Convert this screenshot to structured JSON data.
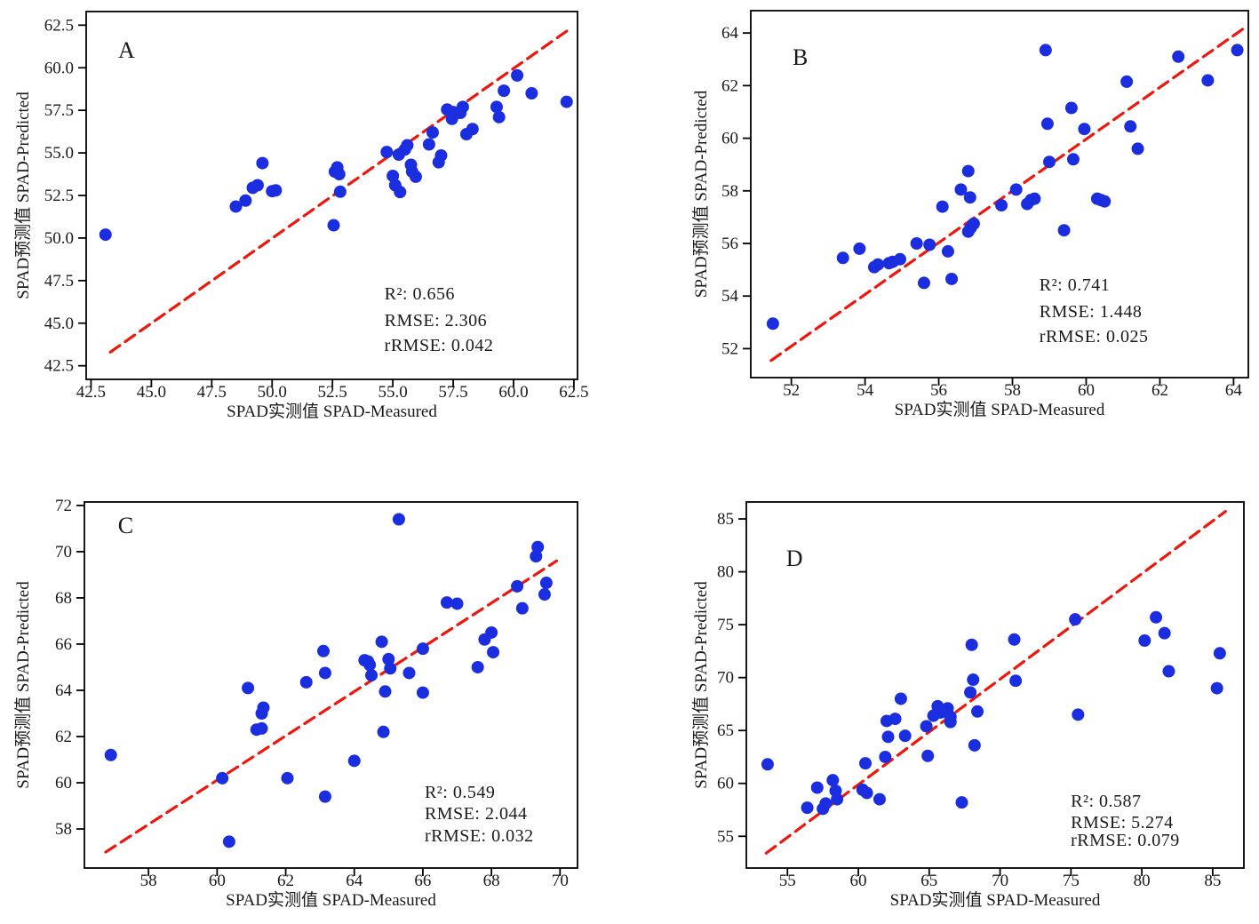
{
  "figure": {
    "background": "#ffffff",
    "colors": {
      "point": "#1a2ee0",
      "identity_line": "#ed170d",
      "axis": "#000000",
      "text": "#1a1a1a"
    }
  },
  "chart_data": [
    {
      "type": "scatter",
      "panel_label": "A",
      "xlabel": "SPAD实测值 SPAD-Measured",
      "ylabel": "SPAD预测值 SPAD-Predicted",
      "xlim": [
        42.3,
        62.65
      ],
      "ylim": [
        41.7,
        63.3
      ],
      "xtick_vals": [
        42.5,
        45.0,
        47.5,
        50.0,
        52.5,
        55.0,
        57.5,
        60.0,
        62.5
      ],
      "xtick_labels": [
        "42.5",
        "45.0",
        "47.5",
        "50.0",
        "52.5",
        "55.0",
        "57.5",
        "60.0",
        "62.5"
      ],
      "ytick_vals": [
        42.5,
        45.0,
        47.5,
        50.0,
        52.5,
        55.0,
        57.5,
        60.0,
        62.5
      ],
      "ytick_labels": [
        "42.5",
        "45.0",
        "47.5",
        "50.0",
        "52.5",
        "55.0",
        "57.5",
        "60.0",
        "62.5"
      ],
      "identity_line": [
        [
          43.3,
          43.3
        ],
        [
          62.35,
          62.3
        ]
      ],
      "stats": [
        {
          "label": "R²",
          "value": "0.656"
        },
        {
          "label": "RMSE",
          "value": "2.306"
        },
        {
          "label": "rRMSE",
          "value": "0.042"
        }
      ],
      "points": [
        [
          43.1,
          50.2
        ],
        [
          48.5,
          51.85
        ],
        [
          48.9,
          52.2
        ],
        [
          49.2,
          52.95
        ],
        [
          49.4,
          53.1
        ],
        [
          49.6,
          54.4
        ],
        [
          50.0,
          52.75
        ],
        [
          50.15,
          52.8
        ],
        [
          52.55,
          50.75
        ],
        [
          52.6,
          53.9
        ],
        [
          52.7,
          54.15
        ],
        [
          52.78,
          53.75
        ],
        [
          52.82,
          52.72
        ],
        [
          54.75,
          55.05
        ],
        [
          55.0,
          53.65
        ],
        [
          55.1,
          53.1
        ],
        [
          55.25,
          54.9
        ],
        [
          55.3,
          52.7
        ],
        [
          55.5,
          55.2
        ],
        [
          55.6,
          55.45
        ],
        [
          55.75,
          54.3
        ],
        [
          55.8,
          53.9
        ],
        [
          55.95,
          53.6
        ],
        [
          56.5,
          55.5
        ],
        [
          56.65,
          56.2
        ],
        [
          56.9,
          54.45
        ],
        [
          57.0,
          54.85
        ],
        [
          57.25,
          57.55
        ],
        [
          57.45,
          57.0
        ],
        [
          57.5,
          57.4
        ],
        [
          57.8,
          57.35
        ],
        [
          57.9,
          57.7
        ],
        [
          58.05,
          56.1
        ],
        [
          58.3,
          56.4
        ],
        [
          59.3,
          57.7
        ],
        [
          59.4,
          57.1
        ],
        [
          59.6,
          58.65
        ],
        [
          60.15,
          59.55
        ],
        [
          60.75,
          58.5
        ],
        [
          62.2,
          58.0
        ]
      ]
    },
    {
      "type": "scatter",
      "panel_label": "B",
      "xlabel": "SPAD实测值 SPAD-Measured",
      "ylabel": "SPAD预测值 SPAD-Predicted",
      "xlim": [
        50.9,
        64.4
      ],
      "ylim": [
        50.9,
        64.85
      ],
      "xtick_vals": [
        52,
        54,
        56,
        58,
        60,
        62,
        64
      ],
      "xtick_labels": [
        "52",
        "54",
        "56",
        "58",
        "60",
        "62",
        "64"
      ],
      "ytick_vals": [
        52,
        54,
        56,
        58,
        60,
        62,
        64
      ],
      "ytick_labels": [
        "52",
        "54",
        "56",
        "58",
        "60",
        "62",
        "64"
      ],
      "identity_line": [
        [
          51.45,
          51.55
        ],
        [
          64.25,
          64.15
        ]
      ],
      "stats": [
        {
          "label": "R²",
          "value": "0.741"
        },
        {
          "label": "RMSE",
          "value": "1.448"
        },
        {
          "label": "rRMSE",
          "value": "0.025"
        }
      ],
      "points": [
        [
          51.5,
          52.95
        ],
        [
          53.4,
          55.45
        ],
        [
          53.85,
          55.8
        ],
        [
          54.25,
          55.1
        ],
        [
          54.35,
          55.2
        ],
        [
          54.65,
          55.25
        ],
        [
          54.75,
          55.3
        ],
        [
          54.95,
          55.4
        ],
        [
          55.4,
          56.0
        ],
        [
          55.6,
          54.5
        ],
        [
          55.75,
          55.95
        ],
        [
          56.1,
          57.4
        ],
        [
          56.25,
          55.7
        ],
        [
          56.35,
          54.65
        ],
        [
          56.6,
          58.05
        ],
        [
          56.8,
          58.75
        ],
        [
          56.85,
          57.75
        ],
        [
          56.8,
          56.45
        ],
        [
          56.87,
          56.6
        ],
        [
          56.95,
          56.75
        ],
        [
          57.7,
          57.45
        ],
        [
          58.1,
          58.05
        ],
        [
          58.4,
          57.5
        ],
        [
          58.5,
          57.65
        ],
        [
          58.6,
          57.7
        ],
        [
          58.9,
          63.35
        ],
        [
          58.95,
          60.55
        ],
        [
          59.0,
          59.1
        ],
        [
          59.4,
          56.5
        ],
        [
          59.6,
          61.15
        ],
        [
          59.65,
          59.2
        ],
        [
          59.95,
          60.35
        ],
        [
          60.3,
          57.7
        ],
        [
          60.4,
          57.65
        ],
        [
          60.5,
          57.6
        ],
        [
          61.1,
          62.15
        ],
        [
          61.2,
          60.45
        ],
        [
          61.4,
          59.6
        ],
        [
          62.5,
          63.1
        ],
        [
          63.3,
          62.2
        ],
        [
          64.1,
          63.35
        ]
      ]
    },
    {
      "type": "scatter",
      "panel_label": "C",
      "xlabel": "SPAD实测值 SPAD-Measured",
      "ylabel": "SPAD预测值 SPAD-Predicted",
      "xlim": [
        56.13,
        70.51
      ],
      "ylim": [
        56.31,
        72.15
      ],
      "xtick_vals": [
        58,
        60,
        62,
        64,
        66,
        68,
        70
      ],
      "xtick_labels": [
        "58",
        "60",
        "62",
        "64",
        "66",
        "68",
        "70"
      ],
      "ytick_vals": [
        58,
        60,
        62,
        64,
        66,
        68,
        70,
        72
      ],
      "ytick_labels": [
        "58",
        "60",
        "62",
        "64",
        "66",
        "68",
        "70",
        "72"
      ],
      "identity_line": [
        [
          56.75,
          57.0
        ],
        [
          69.9,
          69.6
        ]
      ],
      "stats": [
        {
          "label": "R²",
          "value": "0.549"
        },
        {
          "label": "RMSE",
          "value": "2.044"
        },
        {
          "label": "rRMSE",
          "value": "0.032"
        }
      ],
      "points": [
        [
          56.9,
          61.2
        ],
        [
          60.15,
          60.2
        ],
        [
          60.35,
          57.45
        ],
        [
          60.9,
          64.1
        ],
        [
          61.15,
          62.3
        ],
        [
          61.3,
          62.35
        ],
        [
          61.3,
          63.0
        ],
        [
          61.35,
          63.25
        ],
        [
          62.05,
          60.2
        ],
        [
          62.6,
          64.35
        ],
        [
          63.1,
          65.7
        ],
        [
          63.15,
          64.75
        ],
        [
          63.15,
          59.4
        ],
        [
          64.0,
          60.95
        ],
        [
          64.3,
          65.3
        ],
        [
          64.4,
          65.25
        ],
        [
          64.45,
          65.1
        ],
        [
          64.5,
          64.65
        ],
        [
          64.8,
          66.1
        ],
        [
          64.85,
          62.2
        ],
        [
          64.9,
          63.95
        ],
        [
          65.0,
          65.35
        ],
        [
          65.05,
          64.95
        ],
        [
          65.3,
          71.4
        ],
        [
          65.6,
          64.75
        ],
        [
          66.0,
          65.8
        ],
        [
          66.0,
          63.9
        ],
        [
          66.7,
          67.8
        ],
        [
          67.0,
          67.75
        ],
        [
          67.6,
          65.0
        ],
        [
          67.8,
          66.2
        ],
        [
          68.0,
          66.5
        ],
        [
          68.05,
          65.65
        ],
        [
          68.75,
          68.5
        ],
        [
          68.9,
          67.55
        ],
        [
          69.3,
          69.8
        ],
        [
          69.35,
          70.2
        ],
        [
          69.55,
          68.15
        ],
        [
          69.6,
          68.65
        ]
      ]
    },
    {
      "type": "scatter",
      "panel_label": "D",
      "xlabel": "SPAD实测值 SPAD-Measured",
      "ylabel": "SPAD预测值 SPAD-Predicted",
      "xlim": [
        52.1,
        87.2
      ],
      "ylim": [
        52.0,
        86.6
      ],
      "xtick_vals": [
        55,
        60,
        65,
        70,
        75,
        80,
        85
      ],
      "xtick_labels": [
        "55",
        "60",
        "65",
        "70",
        "75",
        "80",
        "85"
      ],
      "ytick_vals": [
        55,
        60,
        65,
        70,
        75,
        80,
        85
      ],
      "ytick_labels": [
        "55",
        "60",
        "65",
        "70",
        "75",
        "80",
        "85"
      ],
      "identity_line": [
        [
          53.5,
          53.4
        ],
        [
          85.9,
          85.7
        ]
      ],
      "stats": [
        {
          "label": "R²",
          "value": "0.587"
        },
        {
          "label": "RMSE",
          "value": "5.274"
        },
        {
          "label": "rRMSE",
          "value": "0.079"
        }
      ],
      "points": [
        [
          53.6,
          61.8
        ],
        [
          56.4,
          57.7
        ],
        [
          57.1,
          59.6
        ],
        [
          57.5,
          57.6
        ],
        [
          57.7,
          58.1
        ],
        [
          58.2,
          60.3
        ],
        [
          58.4,
          59.3
        ],
        [
          58.5,
          58.5
        ],
        [
          60.3,
          59.4
        ],
        [
          60.6,
          59.1
        ],
        [
          60.5,
          61.9
        ],
        [
          61.5,
          58.5
        ],
        [
          61.9,
          62.5
        ],
        [
          62.0,
          65.9
        ],
        [
          62.6,
          66.1
        ],
        [
          62.1,
          64.4
        ],
        [
          63.3,
          64.5
        ],
        [
          63.0,
          68.0
        ],
        [
          64.8,
          65.4
        ],
        [
          64.9,
          62.6
        ],
        [
          65.3,
          66.4
        ],
        [
          65.6,
          67.3
        ],
        [
          65.8,
          66.7
        ],
        [
          66.3,
          67.1
        ],
        [
          66.5,
          66.3
        ],
        [
          66.5,
          65.8
        ],
        [
          67.3,
          58.2
        ],
        [
          67.9,
          68.6
        ],
        [
          68.0,
          73.1
        ],
        [
          68.1,
          69.8
        ],
        [
          68.2,
          63.6
        ],
        [
          68.4,
          66.8
        ],
        [
          71.0,
          73.6
        ],
        [
          71.1,
          69.7
        ],
        [
          75.3,
          75.5
        ],
        [
          75.5,
          66.5
        ],
        [
          80.2,
          73.5
        ],
        [
          81.0,
          75.7
        ],
        [
          81.6,
          74.2
        ],
        [
          81.9,
          70.6
        ],
        [
          85.3,
          69.0
        ],
        [
          85.5,
          72.3
        ]
      ]
    }
  ]
}
